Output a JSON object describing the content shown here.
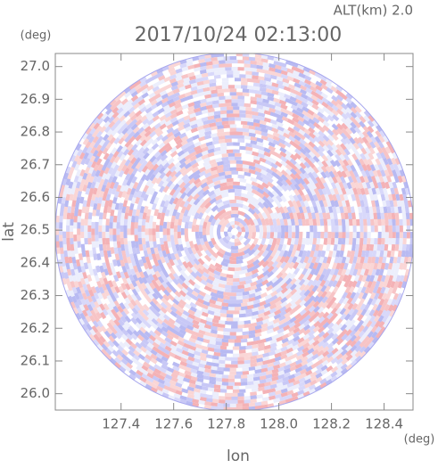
{
  "chart_data": {
    "type": "radar-field",
    "title": "2017/10/24 02:13:00",
    "subtitle": "ALT(km) 2.0",
    "x_label": "lon",
    "y_label": "lat",
    "x_unit": "(deg)",
    "y_unit": "(deg)",
    "xlim": [
      127.15,
      128.51
    ],
    "ylim": [
      25.95,
      27.04
    ],
    "xticks": [
      127.4,
      127.6,
      127.8,
      {
        "value": 128,
        "label": "128.0"
      },
      128.2,
      128.4
    ],
    "yticks": [
      {
        "value": 26,
        "label": "26.0"
      },
      26.1,
      26.2,
      26.3,
      26.4,
      26.5,
      26.6,
      26.7,
      26.8,
      26.9,
      {
        "value": 27,
        "label": "27.0"
      }
    ]
  }
}
